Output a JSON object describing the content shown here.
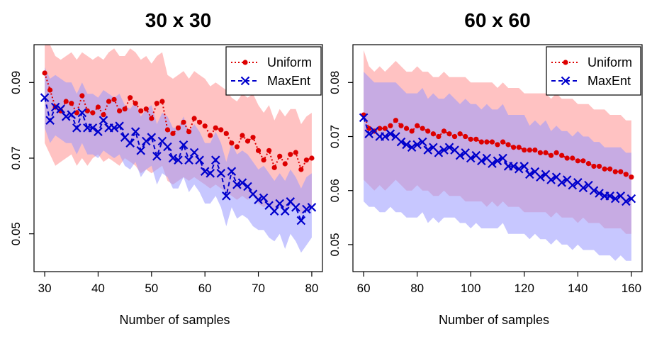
{
  "chart_data": [
    {
      "type": "line",
      "title": "30 x 30",
      "xlabel": "Number of samples",
      "ylabel": "",
      "xlim": [
        28,
        82
      ],
      "ylim": [
        0.04,
        0.1
      ],
      "xticks": [
        30,
        40,
        50,
        60,
        70,
        80
      ],
      "yticks": [
        0.05,
        0.07,
        0.09
      ],
      "legend": {
        "position": "top-right",
        "entries": [
          "Uniform",
          "MaxEnt"
        ]
      },
      "series": [
        {
          "name": "Uniform",
          "color": "#dd0000",
          "band_color": "#ff9999",
          "x": [
            30,
            31,
            32,
            33,
            34,
            35,
            36,
            37,
            38,
            39,
            40,
            41,
            42,
            43,
            44,
            45,
            46,
            47,
            48,
            49,
            50,
            51,
            52,
            53,
            54,
            55,
            56,
            57,
            58,
            59,
            60,
            61,
            62,
            63,
            64,
            65,
            66,
            67,
            68,
            69,
            70,
            71,
            72,
            73,
            74,
            75,
            76,
            77,
            78,
            79,
            80
          ],
          "values": [
            0.0925,
            0.088,
            0.0835,
            0.0825,
            0.085,
            0.0845,
            0.082,
            0.0865,
            0.0825,
            0.082,
            0.0835,
            0.0815,
            0.085,
            0.0855,
            0.0825,
            0.083,
            0.086,
            0.0845,
            0.0825,
            0.083,
            0.0805,
            0.0845,
            0.085,
            0.0775,
            0.0765,
            0.078,
            0.0795,
            0.077,
            0.0805,
            0.0795,
            0.0785,
            0.076,
            0.078,
            0.0775,
            0.0765,
            0.074,
            0.073,
            0.076,
            0.0745,
            0.0755,
            0.072,
            0.0695,
            0.072,
            0.0675,
            0.0705,
            0.0685,
            0.071,
            0.0715,
            0.067,
            0.0695,
            0.07
          ],
          "lower": [
            0.074,
            0.071,
            0.068,
            0.069,
            0.07,
            0.071,
            0.068,
            0.07,
            0.068,
            0.07,
            0.071,
            0.069,
            0.07,
            0.069,
            0.068,
            0.07,
            0.069,
            0.068,
            0.066,
            0.067,
            0.066,
            0.067,
            0.068,
            0.064,
            0.063,
            0.064,
            0.065,
            0.064,
            0.065,
            0.064,
            0.063,
            0.062,
            0.063,
            0.062,
            0.061,
            0.06,
            0.059,
            0.06,
            0.059,
            0.06,
            0.058,
            0.057,
            0.058,
            0.056,
            0.057,
            0.056,
            0.057,
            0.058,
            0.055,
            0.056,
            0.057
          ],
          "upper": [
            0.102,
            0.1,
            0.097,
            0.096,
            0.097,
            0.098,
            0.096,
            0.098,
            0.097,
            0.096,
            0.097,
            0.096,
            0.098,
            0.099,
            0.097,
            0.097,
            0.099,
            0.098,
            0.096,
            0.097,
            0.095,
            0.097,
            0.098,
            0.092,
            0.091,
            0.092,
            0.093,
            0.091,
            0.093,
            0.092,
            0.091,
            0.089,
            0.09,
            0.089,
            0.088,
            0.086,
            0.085,
            0.087,
            0.086,
            0.087,
            0.084,
            0.082,
            0.084,
            0.08,
            0.083,
            0.081,
            0.083,
            0.083,
            0.079,
            0.081,
            0.082
          ]
        },
        {
          "name": "MaxEnt",
          "color": "#0000cc",
          "band_color": "#9999ff",
          "x": [
            30,
            31,
            32,
            33,
            34,
            35,
            36,
            37,
            38,
            39,
            40,
            41,
            42,
            43,
            44,
            45,
            46,
            47,
            48,
            49,
            50,
            51,
            52,
            53,
            54,
            55,
            56,
            57,
            58,
            59,
            60,
            61,
            62,
            63,
            64,
            65,
            66,
            67,
            68,
            69,
            70,
            71,
            72,
            73,
            74,
            75,
            76,
            77,
            78,
            79,
            80
          ],
          "values": [
            0.086,
            0.08,
            0.0835,
            0.083,
            0.081,
            0.0815,
            0.078,
            0.082,
            0.078,
            0.078,
            0.077,
            0.08,
            0.078,
            0.078,
            0.0785,
            0.0755,
            0.074,
            0.077,
            0.072,
            0.0745,
            0.0755,
            0.0705,
            0.0745,
            0.073,
            0.07,
            0.0695,
            0.0735,
            0.0695,
            0.0715,
            0.0695,
            0.0665,
            0.066,
            0.0695,
            0.066,
            0.06,
            0.0665,
            0.063,
            0.0635,
            0.0625,
            0.0605,
            0.059,
            0.0595,
            0.0575,
            0.056,
            0.058,
            0.056,
            0.0585,
            0.057,
            0.0535,
            0.0565,
            0.057
          ],
          "lower": [
            0.078,
            0.074,
            0.076,
            0.075,
            0.074,
            0.074,
            0.071,
            0.074,
            0.071,
            0.071,
            0.07,
            0.072,
            0.071,
            0.07,
            0.071,
            0.068,
            0.067,
            0.069,
            0.065,
            0.067,
            0.068,
            0.063,
            0.066,
            0.065,
            0.062,
            0.062,
            0.065,
            0.061,
            0.063,
            0.061,
            0.058,
            0.058,
            0.06,
            0.057,
            0.052,
            0.057,
            0.054,
            0.055,
            0.054,
            0.052,
            0.051,
            0.051,
            0.049,
            0.048,
            0.05,
            0.046,
            0.05,
            0.048,
            0.045,
            0.047,
            0.049
          ],
          "upper": [
            0.094,
            0.091,
            0.092,
            0.091,
            0.09,
            0.09,
            0.087,
            0.09,
            0.087,
            0.087,
            0.086,
            0.088,
            0.087,
            0.086,
            0.087,
            0.084,
            0.083,
            0.085,
            0.081,
            0.083,
            0.084,
            0.079,
            0.082,
            0.081,
            0.078,
            0.078,
            0.081,
            0.077,
            0.079,
            0.077,
            0.074,
            0.074,
            0.077,
            0.074,
            0.069,
            0.074,
            0.071,
            0.072,
            0.071,
            0.069,
            0.067,
            0.068,
            0.066,
            0.064,
            0.066,
            0.064,
            0.067,
            0.065,
            0.062,
            0.065,
            0.066
          ]
        }
      ]
    },
    {
      "type": "line",
      "title": "60 x 60",
      "xlabel": "Number of samples",
      "ylabel": "",
      "xlim": [
        56,
        164
      ],
      "ylim": [
        0.045,
        0.087
      ],
      "xticks": [
        60,
        80,
        100,
        120,
        140,
        160
      ],
      "yticks": [
        0.05,
        0.06,
        0.07,
        0.08
      ],
      "legend": {
        "position": "top-right",
        "entries": [
          "Uniform",
          "MaxEnt"
        ]
      },
      "series": [
        {
          "name": "Uniform",
          "color": "#dd0000",
          "band_color": "#ff9999",
          "x": [
            60,
            62,
            64,
            66,
            68,
            70,
            72,
            74,
            76,
            78,
            80,
            82,
            84,
            86,
            88,
            90,
            92,
            94,
            96,
            98,
            100,
            102,
            104,
            106,
            108,
            110,
            112,
            114,
            116,
            118,
            120,
            122,
            124,
            126,
            128,
            130,
            132,
            134,
            136,
            138,
            140,
            142,
            144,
            146,
            148,
            150,
            152,
            154,
            156,
            158,
            160
          ],
          "values": [
            0.074,
            0.0715,
            0.071,
            0.0715,
            0.0715,
            0.072,
            0.073,
            0.072,
            0.0715,
            0.071,
            0.072,
            0.0715,
            0.071,
            0.0705,
            0.07,
            0.071,
            0.0705,
            0.07,
            0.0705,
            0.07,
            0.0695,
            0.0695,
            0.069,
            0.069,
            0.069,
            0.0685,
            0.069,
            0.0685,
            0.068,
            0.068,
            0.0675,
            0.0675,
            0.0675,
            0.067,
            0.067,
            0.0665,
            0.067,
            0.0665,
            0.066,
            0.066,
            0.0655,
            0.0655,
            0.065,
            0.0645,
            0.0645,
            0.064,
            0.064,
            0.0635,
            0.0635,
            0.063,
            0.0625
          ],
          "lower": [
            0.062,
            0.061,
            0.06,
            0.061,
            0.06,
            0.061,
            0.062,
            0.061,
            0.06,
            0.06,
            0.061,
            0.06,
            0.06,
            0.059,
            0.059,
            0.06,
            0.059,
            0.059,
            0.059,
            0.058,
            0.058,
            0.058,
            0.058,
            0.057,
            0.058,
            0.057,
            0.058,
            0.057,
            0.057,
            0.057,
            0.056,
            0.056,
            0.056,
            0.056,
            0.056,
            0.055,
            0.056,
            0.055,
            0.055,
            0.055,
            0.054,
            0.055,
            0.054,
            0.054,
            0.054,
            0.053,
            0.053,
            0.053,
            0.053,
            0.052,
            0.052
          ],
          "upper": [
            0.086,
            0.083,
            0.082,
            0.083,
            0.082,
            0.083,
            0.084,
            0.083,
            0.082,
            0.082,
            0.083,
            0.082,
            0.082,
            0.081,
            0.081,
            0.082,
            0.081,
            0.081,
            0.081,
            0.081,
            0.08,
            0.08,
            0.08,
            0.08,
            0.08,
            0.079,
            0.08,
            0.079,
            0.079,
            0.079,
            0.078,
            0.078,
            0.078,
            0.078,
            0.078,
            0.077,
            0.078,
            0.077,
            0.077,
            0.077,
            0.076,
            0.076,
            0.076,
            0.075,
            0.075,
            0.075,
            0.074,
            0.074,
            0.074,
            0.073,
            0.073
          ]
        },
        {
          "name": "MaxEnt",
          "color": "#0000cc",
          "band_color": "#9999ff",
          "x": [
            60,
            62,
            64,
            66,
            68,
            70,
            72,
            74,
            76,
            78,
            80,
            82,
            84,
            86,
            88,
            90,
            92,
            94,
            96,
            98,
            100,
            102,
            104,
            106,
            108,
            110,
            112,
            114,
            116,
            118,
            120,
            122,
            124,
            126,
            128,
            130,
            132,
            134,
            136,
            138,
            140,
            142,
            144,
            146,
            148,
            150,
            152,
            154,
            156,
            158,
            160
          ],
          "values": [
            0.0735,
            0.0705,
            0.071,
            0.07,
            0.07,
            0.0705,
            0.07,
            0.069,
            0.0685,
            0.068,
            0.0685,
            0.069,
            0.0675,
            0.068,
            0.067,
            0.0675,
            0.068,
            0.0675,
            0.0665,
            0.067,
            0.066,
            0.0665,
            0.0655,
            0.066,
            0.065,
            0.0655,
            0.066,
            0.0645,
            0.0645,
            0.064,
            0.0645,
            0.063,
            0.0635,
            0.0625,
            0.063,
            0.062,
            0.0625,
            0.0615,
            0.062,
            0.061,
            0.0615,
            0.0605,
            0.061,
            0.06,
            0.0595,
            0.059,
            0.059,
            0.0585,
            0.059,
            0.058,
            0.0585
          ],
          "lower": [
            0.058,
            0.057,
            0.057,
            0.056,
            0.056,
            0.057,
            0.056,
            0.056,
            0.055,
            0.055,
            0.055,
            0.056,
            0.054,
            0.055,
            0.054,
            0.055,
            0.055,
            0.055,
            0.054,
            0.054,
            0.053,
            0.054,
            0.053,
            0.053,
            0.053,
            0.053,
            0.054,
            0.052,
            0.052,
            0.052,
            0.052,
            0.051,
            0.052,
            0.051,
            0.051,
            0.05,
            0.051,
            0.05,
            0.05,
            0.049,
            0.05,
            0.049,
            0.049,
            0.049,
            0.048,
            0.048,
            0.048,
            0.047,
            0.048,
            0.047,
            0.047
          ],
          "upper": [
            0.082,
            0.081,
            0.08,
            0.08,
            0.08,
            0.08,
            0.08,
            0.079,
            0.078,
            0.078,
            0.078,
            0.079,
            0.077,
            0.078,
            0.077,
            0.077,
            0.078,
            0.077,
            0.076,
            0.077,
            0.076,
            0.076,
            0.075,
            0.076,
            0.075,
            0.075,
            0.076,
            0.074,
            0.074,
            0.074,
            0.074,
            0.072,
            0.073,
            0.072,
            0.073,
            0.071,
            0.072,
            0.071,
            0.071,
            0.07,
            0.071,
            0.07,
            0.07,
            0.069,
            0.069,
            0.068,
            0.068,
            0.068,
            0.068,
            0.067,
            0.067
          ]
        }
      ]
    }
  ]
}
